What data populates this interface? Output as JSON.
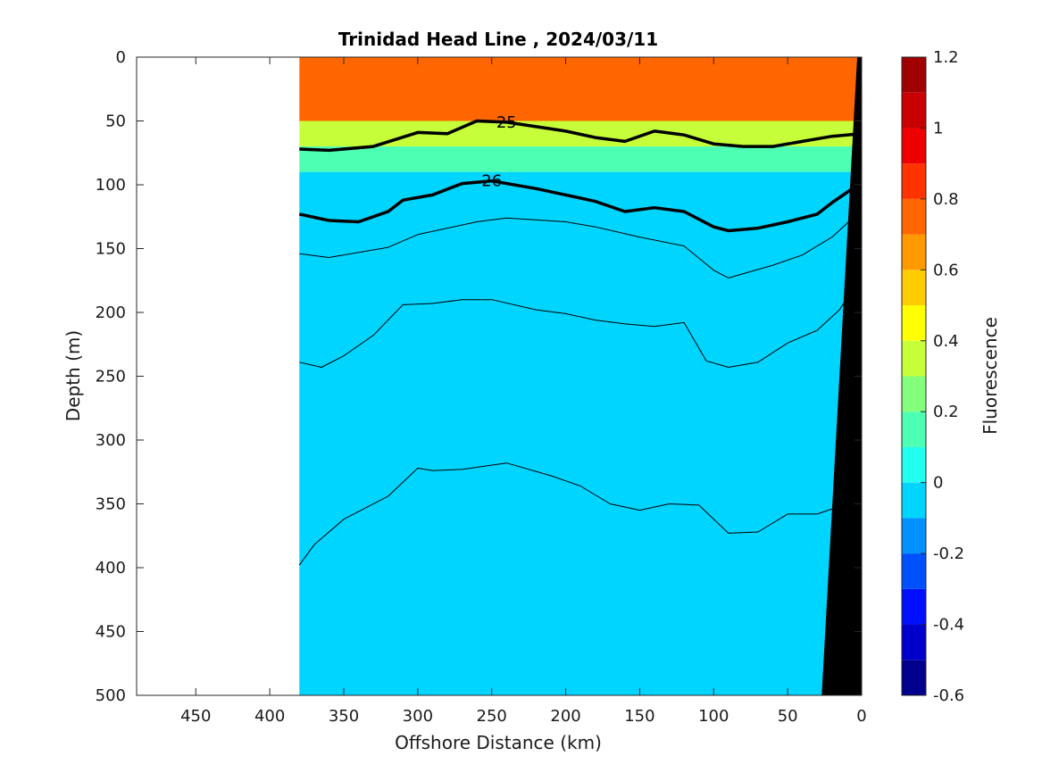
{
  "chart_data": {
    "type": "heatmap",
    "title": "Trinidad Head Line , 2024/03/11",
    "xlabel": "Offshore Distance (km)",
    "ylabel": "Depth (m)",
    "colorbar_label": "Fluorescence",
    "xlim": [
      490,
      0
    ],
    "ylim": [
      0,
      500
    ],
    "x_ticks": [
      450,
      400,
      350,
      300,
      250,
      200,
      150,
      100,
      50,
      0
    ],
    "y_ticks": [
      0,
      50,
      100,
      150,
      200,
      250,
      300,
      350,
      400,
      450,
      500
    ],
    "colorbar": {
      "min": -0.6,
      "max": 1.2,
      "ticks": [
        "1.2",
        "1",
        "0.8",
        "0.6",
        "0.4",
        "0.2",
        "0",
        "-0.2",
        "-0.4",
        "-0.6"
      ],
      "tick_values": [
        1.2,
        1.0,
        0.8,
        0.6,
        0.4,
        0.2,
        0.0,
        -0.2,
        -0.4,
        -0.6
      ],
      "levels": [
        -0.6,
        -0.5,
        -0.4,
        -0.3,
        -0.2,
        -0.1,
        0.0,
        0.1,
        0.2,
        0.3,
        0.4,
        0.5,
        0.6,
        0.7,
        0.8,
        0.9,
        1.0,
        1.1,
        1.2
      ],
      "colors": [
        "#00008f",
        "#0000cc",
        "#0010ff",
        "#0050ff",
        "#0090ff",
        "#00d5ff",
        "#21fff0",
        "#4dffb2",
        "#84ff7b",
        "#c6ff39",
        "#ffff00",
        "#ffcc00",
        "#ff9900",
        "#ff6600",
        "#ff3300",
        "#ee0000",
        "#c80000",
        "#a00000"
      ]
    },
    "data_extent_km": 380,
    "fluorescence_profile": [
      {
        "depth_range": [
          0,
          50
        ],
        "value": 0.85,
        "color": "#ff6600"
      },
      {
        "depth_range": [
          50,
          70
        ],
        "value": 0.5,
        "color": "#c6ff39"
      },
      {
        "depth_range": [
          70,
          90
        ],
        "value": 0.25,
        "color": "#4dffb2"
      },
      {
        "depth_range": [
          90,
          500
        ],
        "value": 0.05,
        "color": "#00d5ff"
      }
    ],
    "density_contours": [
      {
        "label": "25",
        "bold": true,
        "points": [
          [
            380,
            72
          ],
          [
            360,
            73
          ],
          [
            330,
            70
          ],
          [
            300,
            59
          ],
          [
            280,
            60
          ],
          [
            260,
            50
          ],
          [
            240,
            51
          ],
          [
            200,
            58
          ],
          [
            180,
            63
          ],
          [
            160,
            66
          ],
          [
            140,
            58
          ],
          [
            120,
            61
          ],
          [
            100,
            68
          ],
          [
            80,
            70
          ],
          [
            60,
            70
          ],
          [
            40,
            66
          ],
          [
            20,
            62
          ],
          [
            0,
            60
          ]
        ]
      },
      {
        "label": "26",
        "bold": true,
        "points": [
          [
            380,
            123
          ],
          [
            360,
            128
          ],
          [
            340,
            129
          ],
          [
            320,
            121
          ],
          [
            310,
            112
          ],
          [
            290,
            108
          ],
          [
            270,
            99
          ],
          [
            250,
            97
          ],
          [
            220,
            103
          ],
          [
            200,
            108
          ],
          [
            180,
            113
          ],
          [
            160,
            121
          ],
          [
            140,
            118
          ],
          [
            120,
            121
          ],
          [
            100,
            133
          ],
          [
            90,
            136
          ],
          [
            70,
            134
          ],
          [
            50,
            129
          ],
          [
            30,
            123
          ],
          [
            20,
            114
          ],
          [
            5,
            102
          ]
        ]
      },
      {
        "label": "",
        "bold": false,
        "points": [
          [
            380,
            154
          ],
          [
            360,
            157
          ],
          [
            320,
            149
          ],
          [
            300,
            139
          ],
          [
            280,
            134
          ],
          [
            260,
            129
          ],
          [
            240,
            126
          ],
          [
            200,
            129
          ],
          [
            180,
            133
          ],
          [
            150,
            141
          ],
          [
            120,
            148
          ],
          [
            100,
            167
          ],
          [
            90,
            173
          ],
          [
            60,
            163
          ],
          [
            40,
            155
          ],
          [
            20,
            141
          ],
          [
            5,
            125
          ]
        ]
      },
      {
        "label": "",
        "bold": false,
        "points": [
          [
            380,
            239
          ],
          [
            365,
            243
          ],
          [
            350,
            234
          ],
          [
            330,
            218
          ],
          [
            310,
            194
          ],
          [
            290,
            193
          ],
          [
            270,
            190
          ],
          [
            250,
            190
          ],
          [
            220,
            198
          ],
          [
            200,
            201
          ],
          [
            180,
            206
          ],
          [
            160,
            209
          ],
          [
            140,
            211
          ],
          [
            120,
            208
          ],
          [
            105,
            238
          ],
          [
            90,
            243
          ],
          [
            70,
            239
          ],
          [
            50,
            224
          ],
          [
            30,
            214
          ],
          [
            15,
            198
          ],
          [
            5,
            180
          ]
        ]
      },
      {
        "label": "",
        "bold": false,
        "points": [
          [
            380,
            398
          ],
          [
            370,
            382
          ],
          [
            350,
            362
          ],
          [
            320,
            344
          ],
          [
            300,
            322
          ],
          [
            290,
            324
          ],
          [
            270,
            323
          ],
          [
            240,
            318
          ],
          [
            210,
            328
          ],
          [
            190,
            336
          ],
          [
            170,
            350
          ],
          [
            150,
            355
          ],
          [
            130,
            350
          ],
          [
            110,
            351
          ],
          [
            90,
            373
          ],
          [
            70,
            372
          ],
          [
            50,
            358
          ],
          [
            30,
            358
          ],
          [
            15,
            352
          ],
          [
            5,
            342
          ]
        ]
      }
    ],
    "bathymetry": {
      "surface_km": 3,
      "bottom_km": 27,
      "bottom_depth": 500
    }
  }
}
